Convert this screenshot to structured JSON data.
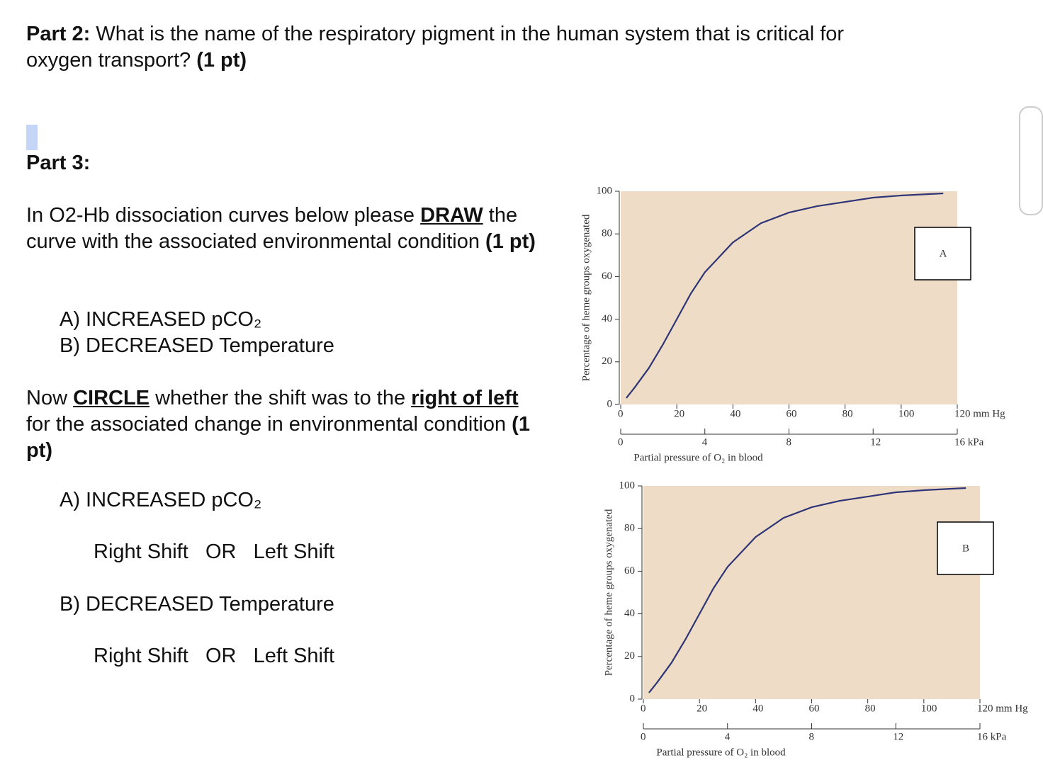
{
  "part2": {
    "label": "Part 2:",
    "question": " What is the name of the respiratory pigment in the human system that is critical for oxygen transport? ",
    "points": "(1 pt)"
  },
  "part3": {
    "label": "Part 3:",
    "draw_instruction": [
      "In O2-Hb dissociation curves below please ",
      "DRAW",
      " the curve with the associated environmental condition ",
      "(1 pt)"
    ],
    "conditions": [
      "A) INCREASED pCO₂",
      "B) DECREASED Temperature"
    ],
    "circle_instruction": [
      "Now ",
      "CIRCLE",
      " whether the shift was to the ",
      "right of left",
      " for the associated change in environmental condition ",
      "(1 pt)"
    ],
    "questions": [
      {
        "condition": "A) INCREASED pCO₂",
        "options": "Right Shift   OR   Left Shift"
      },
      {
        "condition": "B) DECREASED Temperature",
        "options": "Right Shift   OR   Left Shift"
      }
    ]
  },
  "chart_data": [
    {
      "type": "line",
      "annotation": "A",
      "x_label": "Partial pressure of O₂ in blood",
      "y_label": "Percentage of heme groups oxygenated",
      "x": [
        2,
        5,
        10,
        15,
        20,
        25,
        30,
        40,
        50,
        60,
        70,
        80,
        90,
        100,
        115
      ],
      "values": [
        3,
        8,
        17,
        28,
        40,
        52,
        62,
        76,
        85,
        90,
        93,
        95,
        97,
        98,
        99
      ],
      "color": "#2e3576",
      "background": "#eedcc6",
      "xlim": [
        0,
        120
      ],
      "xticks": [
        0,
        20,
        40,
        60,
        80,
        100,
        {
          "value": 120,
          "label": "120  mm Hg"
        }
      ],
      "x2lim": [
        0,
        16
      ],
      "x2ticks": [
        0,
        4,
        8,
        12,
        {
          "value": 16,
          "label": "16  kPa"
        }
      ],
      "ylim": [
        0,
        100
      ],
      "yticks": [
        0,
        20,
        40,
        60,
        80,
        100
      ]
    },
    {
      "type": "line",
      "annotation": "B",
      "x_label": "Partial pressure of O₂ in blood",
      "y_label": "Percentage of heme groups oxygenated",
      "x": [
        2,
        5,
        10,
        15,
        20,
        25,
        30,
        40,
        50,
        60,
        70,
        80,
        90,
        100,
        115
      ],
      "values": [
        3,
        8,
        17,
        28,
        40,
        52,
        62,
        76,
        85,
        90,
        93,
        95,
        97,
        98,
        99
      ],
      "color": "#2e3576",
      "background": "#eedcc6",
      "xlim": [
        0,
        120
      ],
      "xticks": [
        0,
        20,
        40,
        60,
        80,
        100,
        {
          "value": 120,
          "label": "120  mm Hg"
        }
      ],
      "x2lim": [
        0,
        16
      ],
      "x2ticks": [
        0,
        4,
        8,
        12,
        {
          "value": 16,
          "label": "16  kPa"
        }
      ],
      "ylim": [
        0,
        100
      ],
      "yticks": [
        0,
        20,
        40,
        60,
        80,
        100
      ]
    }
  ]
}
